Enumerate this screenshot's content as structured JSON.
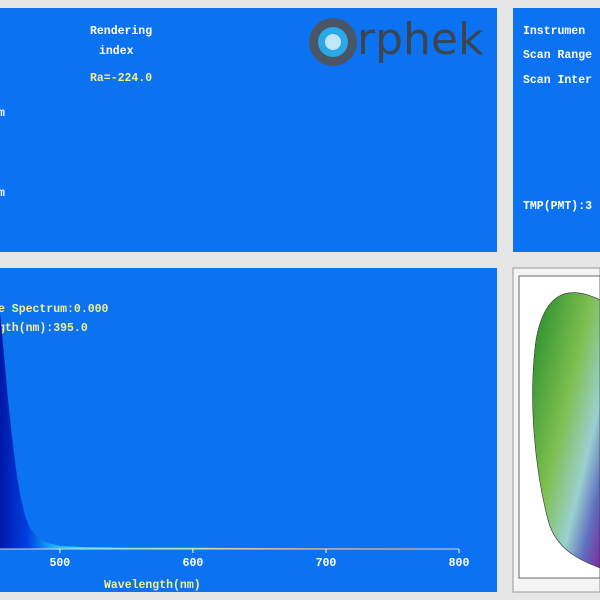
{
  "top_left": {
    "rendering_label": "Rendering",
    "index_label": "index",
    "ra": "Ra=-224.0",
    "row_1": "m",
    "row_2": "m"
  },
  "logo": {
    "text": "rphek"
  },
  "top_right": {
    "instrument": "Instrumen",
    "scan_range": "Scan Range",
    "scan_interval": "Scan Inter",
    "tmp": "TMP(PMT):3"
  },
  "spectrum": {
    "type": "area",
    "peak_label": "e Spectrum:0.000",
    "peak_wavelength": "gth(nm):395.0",
    "x_label": "Wavelength(nm)",
    "x": [
      455,
      458,
      461,
      464,
      467,
      470,
      474,
      478,
      484,
      490,
      500,
      520,
      550,
      600,
      650,
      700,
      750,
      800
    ],
    "values": [
      0.95,
      0.78,
      0.6,
      0.45,
      0.32,
      0.22,
      0.13,
      0.08,
      0.045,
      0.025,
      0.012,
      0.007,
      0.005,
      0.005,
      0.004,
      0.003,
      0.003,
      0.002
    ],
    "xlim": [
      455,
      800
    ],
    "ylim": [
      0,
      1
    ],
    "xticks": [
      500,
      600,
      700,
      800
    ]
  }
}
